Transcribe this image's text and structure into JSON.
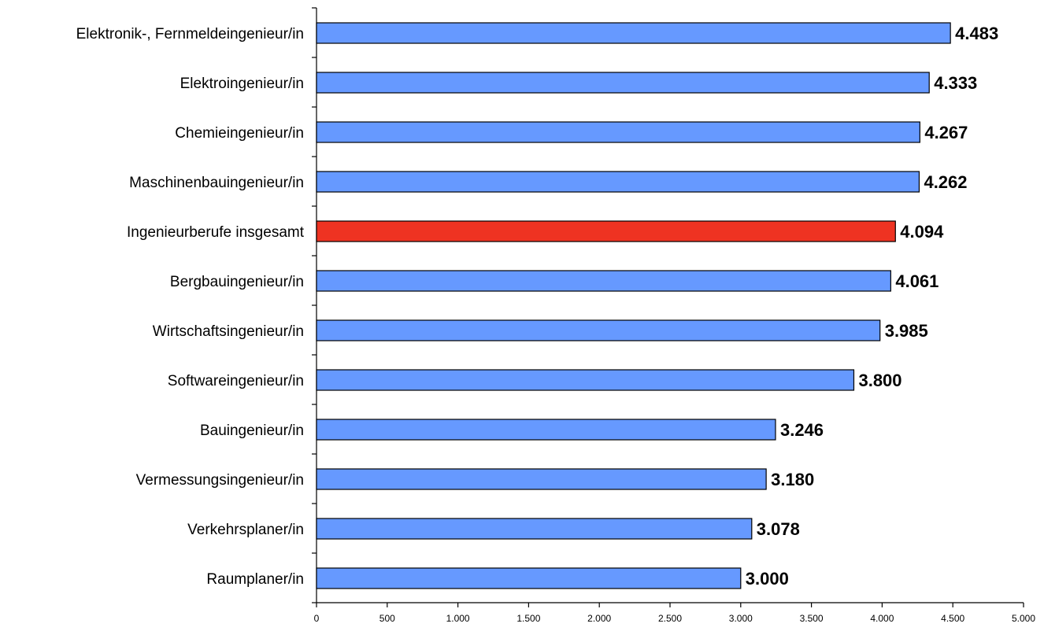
{
  "chart_data": {
    "type": "bar",
    "orientation": "horizontal",
    "categories": [
      "Elektronik-, Fernmeldeingenieur/in",
      "Elektroingenieur/in",
      "Chemieingenieur/in",
      "Maschinenbauingenieur/in",
      "Ingenieurberufe insgesamt",
      "Bergbauingenieur/in",
      "Wirtschaftsingenieur/in",
      "Softwareingenieur/in",
      "Bauingenieur/in",
      "Vermessungsingenieur/in",
      "Verkehrsplaner/in",
      "Raumplaner/in"
    ],
    "values": [
      4483,
      4333,
      4267,
      4262,
      4094,
      4061,
      3985,
      3800,
      3246,
      3180,
      3078,
      3000
    ],
    "value_labels": [
      "4.483",
      "4.333",
      "4.267",
      "4.262",
      "4.094",
      "4.061",
      "3.985",
      "3.800",
      "3.246",
      "3.180",
      "3.078",
      "3.000"
    ],
    "highlight_index": 4,
    "colors": {
      "bar": "#6699FF",
      "highlight": "#EE3322",
      "outline": "#000000"
    },
    "xlim": [
      0,
      5000
    ],
    "x_ticks": [
      0,
      500,
      1000,
      1500,
      2000,
      2500,
      3000,
      3500,
      4000,
      4500,
      5000
    ],
    "x_tick_labels": [
      "0",
      "500",
      "1.000",
      "1.500",
      "2.000",
      "2.500",
      "3.000",
      "3.500",
      "4.000",
      "4.500",
      "5.000"
    ],
    "title": "",
    "xlabel": "",
    "ylabel": "",
    "grid": false,
    "legend": "none"
  }
}
